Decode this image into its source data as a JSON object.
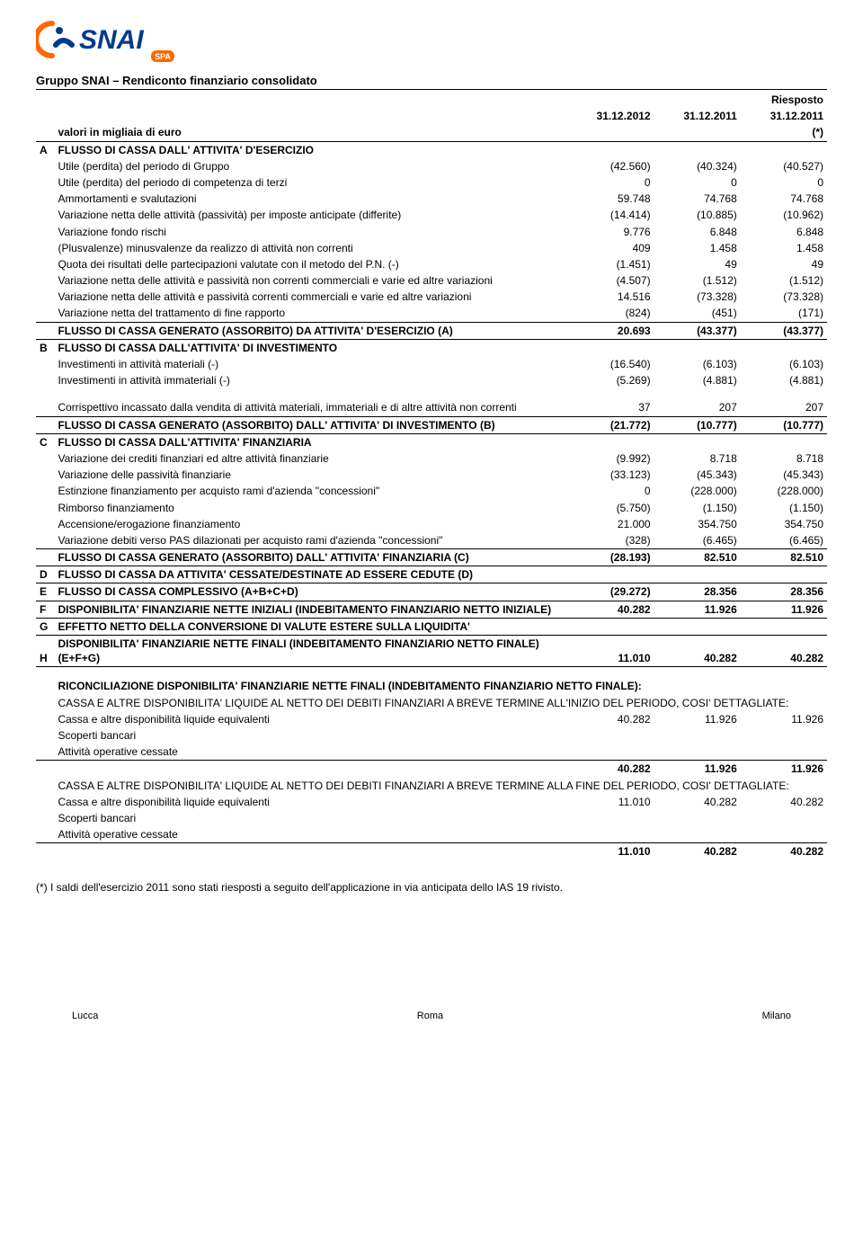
{
  "logo": {
    "text": "SNAI",
    "primary": "#003a8c",
    "accent": "#ff6600",
    "spa": "SPA"
  },
  "doc_title": "Gruppo SNAI – Rendiconto finanziario consolidato",
  "header": {
    "subtitle": "valori in migliaia di euro",
    "col1": "31.12.2012",
    "col2": "31.12.2011",
    "col3_top": "Riesposto",
    "col3_mid": "31.12.2011",
    "col3_bot": "(*)"
  },
  "rows": [
    {
      "letter": "A",
      "label": "FLUSSO DI CASSA DALL' ATTIVITA' D'ESERCIZIO",
      "v": [
        "",
        "",
        ""
      ],
      "bold": true
    },
    {
      "label": "Utile (perdita) del periodo di Gruppo",
      "v": [
        "(42.560)",
        "(40.324)",
        "(40.527)"
      ]
    },
    {
      "label": "Utile (perdita) del periodo di competenza di terzi",
      "v": [
        "0",
        "0",
        "0"
      ]
    },
    {
      "label": "Ammortamenti e svalutazioni",
      "v": [
        "59.748",
        "74.768",
        "74.768"
      ]
    },
    {
      "label": "Variazione netta delle attività (passività) per imposte anticipate (differite)",
      "v": [
        "(14.414)",
        "(10.885)",
        "(10.962)"
      ]
    },
    {
      "label": "Variazione fondo rischi",
      "v": [
        "9.776",
        "6.848",
        "6.848"
      ]
    },
    {
      "label": "(Plusvalenze) minusvalenze da realizzo di attività non correnti",
      "v": [
        "409",
        "1.458",
        "1.458"
      ]
    },
    {
      "label": "Quota dei risultati delle partecipazioni valutate con il metodo del P.N. (-)",
      "v": [
        "(1.451)",
        "49",
        "49"
      ]
    },
    {
      "label": "Variazione netta delle attività e passività non correnti commerciali e varie ed altre variazioni",
      "v": [
        "(4.507)",
        "(1.512)",
        "(1.512)"
      ]
    },
    {
      "label": "Variazione netta delle attività e passività correnti commerciali e varie ed altre variazioni",
      "v": [
        "14.516",
        "(73.328)",
        "(73.328)"
      ]
    },
    {
      "label": "Variazione netta del trattamento di fine rapporto",
      "v": [
        "(824)",
        "(451)",
        "(171)"
      ],
      "line_bottom": true
    },
    {
      "label": "FLUSSO DI CASSA GENERATO (ASSORBITO) DA ATTIVITA' D'ESERCIZIO (A)",
      "v": [
        "20.693",
        "(43.377)",
        "(43.377)"
      ],
      "bold": true,
      "line_bottom": true
    },
    {
      "letter": "B",
      "label": "FLUSSO DI CASSA DALL'ATTIVITA' DI INVESTIMENTO",
      "v": [
        "",
        "",
        ""
      ],
      "bold": true
    },
    {
      "label": "Investimenti in attività materiali (-)",
      "v": [
        "(16.540)",
        "(6.103)",
        "(6.103)"
      ]
    },
    {
      "label": "Investimenti in attività immateriali (-)",
      "v": [
        "(5.269)",
        "(4.881)",
        "(4.881)"
      ]
    },
    {
      "spacer": true
    },
    {
      "label": "Corrispettivo incassato dalla vendita di attività materiali, immateriali e di altre attività non correnti",
      "v": [
        "37",
        "207",
        "207"
      ],
      "line_bottom": true
    },
    {
      "label": "FLUSSO DI CASSA GENERATO (ASSORBITO) DALL' ATTIVITA' DI INVESTIMENTO (B)",
      "v": [
        "(21.772)",
        "(10.777)",
        "(10.777)"
      ],
      "bold": true,
      "line_bottom": true
    },
    {
      "letter": "C",
      "label": "FLUSSO DI CASSA DALL'ATTIVITA' FINANZIARIA",
      "v": [
        "",
        "",
        ""
      ],
      "bold": true
    },
    {
      "label": "Variazione dei crediti finanziari ed altre attività finanziarie",
      "v": [
        "(9.992)",
        "8.718",
        "8.718"
      ]
    },
    {
      "label": "Variazione delle passività finanziarie",
      "v": [
        "(33.123)",
        "(45.343)",
        "(45.343)"
      ]
    },
    {
      "label": "Estinzione finanziamento per acquisto rami d'azienda \"concessioni\"",
      "v": [
        "0",
        "(228.000)",
        "(228.000)"
      ]
    },
    {
      "label": "Rimborso finanziamento",
      "v": [
        "(5.750)",
        "(1.150)",
        "(1.150)"
      ]
    },
    {
      "label": "Accensione/erogazione finanziamento",
      "v": [
        "21.000",
        "354.750",
        "354.750"
      ]
    },
    {
      "label": "Variazione debiti verso PAS dilazionati per acquisto rami d'azienda \"concessioni\"",
      "v": [
        "(328)",
        "(6.465)",
        "(6.465)"
      ],
      "line_bottom": true
    },
    {
      "label": "FLUSSO DI CASSA GENERATO (ASSORBITO) DALL' ATTIVITA' FINANZIARIA (C)",
      "v": [
        "(28.193)",
        "82.510",
        "82.510"
      ],
      "bold": true,
      "line_bottom": true
    },
    {
      "letter": "D",
      "label": "FLUSSO DI CASSA DA ATTIVITA' CESSATE/DESTINATE AD ESSERE CEDUTE (D)",
      "v": [
        "",
        "",
        ""
      ],
      "bold": true,
      "line_bottom": true
    },
    {
      "letter": "E",
      "label": "FLUSSO DI CASSA COMPLESSIVO (A+B+C+D)",
      "v": [
        "(29.272)",
        "28.356",
        "28.356"
      ],
      "bold": true,
      "line_bottom": true
    },
    {
      "letter": "F",
      "label": "DISPONIBILITA' FINANZIARIE NETTE INIZIALI (INDEBITAMENTO FINANZIARIO NETTO INIZIALE)",
      "v": [
        "40.282",
        "11.926",
        "11.926"
      ],
      "bold": true,
      "line_bottom": true
    },
    {
      "letter": "G",
      "label": "EFFETTO NETTO DELLA CONVERSIONE DI VALUTE ESTERE SULLA LIQUIDITA'",
      "v": [
        "",
        "",
        ""
      ],
      "bold": true,
      "line_bottom": true
    },
    {
      "letter": "H",
      "label": "DISPONIBILITA' FINANZIARIE NETTE FINALI (INDEBITAMENTO FINANZIARIO NETTO FINALE)  (E+F+G)",
      "v": [
        "11.010",
        "40.282",
        "40.282"
      ],
      "bold": true,
      "line_bottom": true
    },
    {
      "spacer": true
    },
    {
      "label": "RICONCILIAZIONE DISPONIBILITA' FINANZIARIE NETTE FINALI (INDEBITAMENTO FINANZIARIO NETTO FINALE):",
      "v": [
        "",
        "",
        ""
      ],
      "bold": true,
      "full": true
    },
    {
      "label": "CASSA E ALTRE DISPONIBILITA' LIQUIDE AL NETTO DEI DEBITI FINANZIARI A BREVE TERMINE ALL'INIZIO DEL PERIODO, COSI' DETTAGLIATE:",
      "v": [
        "",
        "",
        ""
      ],
      "full": true
    },
    {
      "label": "Cassa e altre disponibilità liquide equivalenti",
      "v": [
        "40.282",
        "11.926",
        "11.926"
      ]
    },
    {
      "label": "Scoperti bancari",
      "v": [
        "",
        "",
        ""
      ]
    },
    {
      "label": "Attività operative cessate",
      "v": [
        "",
        "",
        ""
      ],
      "line_bottom": true
    },
    {
      "label": "",
      "v": [
        "40.282",
        "11.926",
        "11.926"
      ],
      "bold": true
    },
    {
      "label": "CASSA E ALTRE DISPONIBILITA' LIQUIDE AL NETTO DEI DEBITI FINANZIARI A BREVE TERMINE ALLA FINE DEL PERIODO, COSI' DETTAGLIATE:",
      "v": [
        "",
        "",
        ""
      ],
      "full": true
    },
    {
      "label": "Cassa e altre disponibilità liquide equivalenti",
      "v": [
        "11.010",
        "40.282",
        "40.282"
      ]
    },
    {
      "label": "Scoperti bancari",
      "v": [
        "",
        "",
        ""
      ]
    },
    {
      "label": "Attività operative cessate",
      "v": [
        "",
        "",
        ""
      ],
      "line_bottom": true
    },
    {
      "label": "",
      "v": [
        "11.010",
        "40.282",
        "40.282"
      ],
      "bold": true
    }
  ],
  "footnote": "(*) I saldi dell'esercizio 2011 sono stati riesposti a seguito dell'applicazione in via anticipata dello IAS 19 rivisto.",
  "footer": {
    "left": "Lucca",
    "center": "Roma",
    "right": "Milano"
  }
}
